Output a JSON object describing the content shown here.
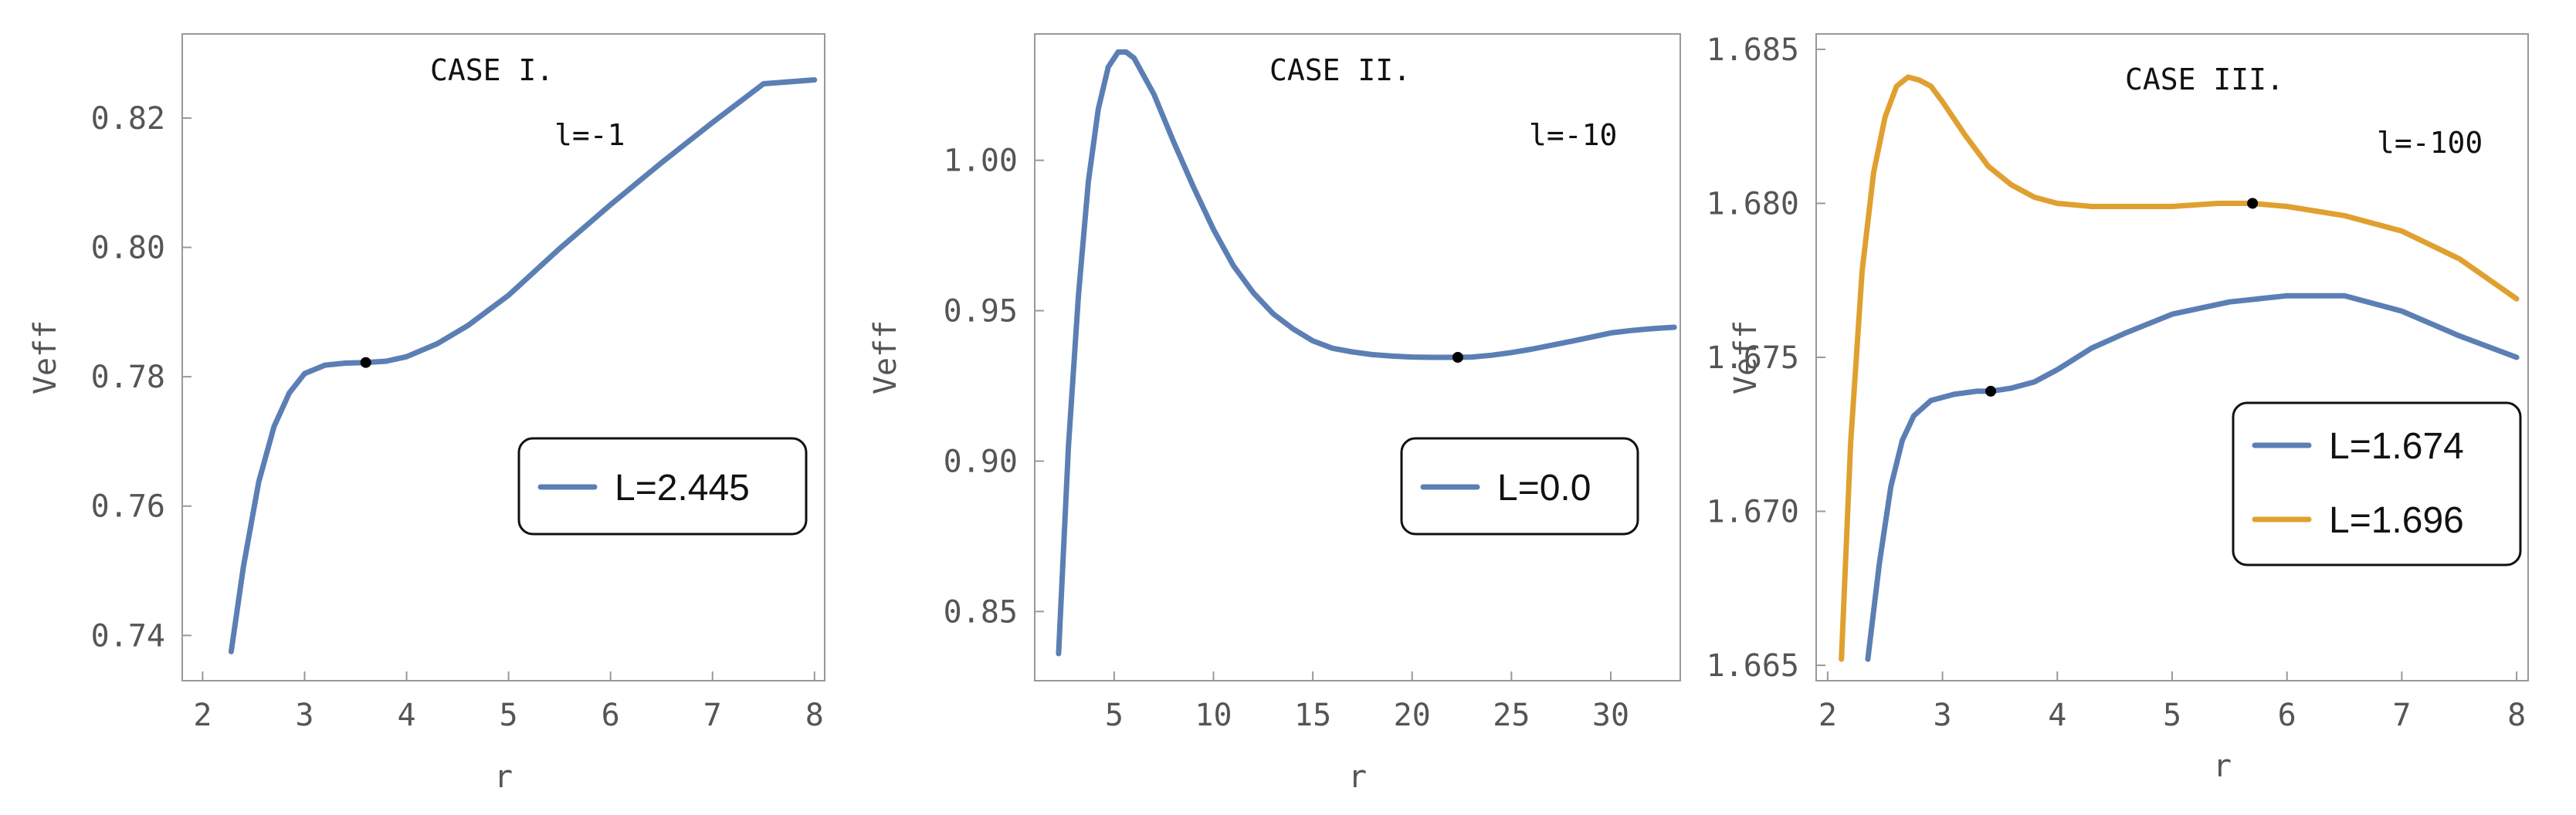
{
  "chart_data": [
    {
      "type": "line",
      "xlabel": "r",
      "ylabel": "Veff",
      "xlim": [
        1.8,
        8.1
      ],
      "ylim": [
        0.733,
        0.833
      ],
      "xticks": [
        2,
        3,
        4,
        5,
        6,
        7,
        8
      ],
      "xtick_labels": [
        "2",
        "3",
        "4",
        "5",
        "6",
        "7",
        "8"
      ],
      "yticks": [
        0.74,
        0.76,
        0.78,
        0.8,
        0.82
      ],
      "ytick_labels": [
        "0.74",
        "0.76",
        "0.78",
        "0.80",
        "0.82"
      ],
      "annotations": [
        "CASE I.",
        "l=-1"
      ],
      "legend_position": "lower-right",
      "grid": false,
      "series": [
        {
          "name": "L=2.445",
          "color": "#5b7fb4",
          "x": [
            2.28,
            2.4,
            2.55,
            2.7,
            2.85,
            3.0,
            3.2,
            3.4,
            3.6,
            3.8,
            4.0,
            4.3,
            4.6,
            5.0,
            5.5,
            6.0,
            6.5,
            7.0,
            7.5,
            8.0
          ],
          "y": [
            0.7375,
            0.7506,
            0.7637,
            0.7723,
            0.7775,
            0.7805,
            0.7818,
            0.7821,
            0.7822,
            0.7824,
            0.7831,
            0.7851,
            0.7879,
            0.7926,
            0.7998,
            0.8066,
            0.8131,
            0.8193,
            0.8253,
            0.8259
          ]
        }
      ],
      "marked_points": [
        {
          "x": 3.6,
          "y": 0.7822
        }
      ]
    },
    {
      "type": "line",
      "xlabel": "r",
      "ylabel": "Veff",
      "xlim": [
        1.0,
        33.5
      ],
      "ylim": [
        0.827,
        1.042
      ],
      "xticks": [
        5,
        10,
        15,
        20,
        25,
        30
      ],
      "xtick_labels": [
        "5",
        "10",
        "15",
        "20",
        "25",
        "30"
      ],
      "yticks": [
        0.85,
        0.9,
        0.95,
        1.0
      ],
      "ytick_labels": [
        "0.85",
        "0.90",
        "0.95",
        "1.00"
      ],
      "annotations": [
        "CASE II.",
        "l=-10"
      ],
      "legend_position": "lower-right",
      "grid": false,
      "series": [
        {
          "name": "L=0.0",
          "color": "#5b7fb4",
          "x": [
            2.2,
            2.7,
            3.2,
            3.7,
            4.2,
            4.7,
            5.2,
            5.6,
            6.0,
            7.0,
            8.0,
            9.0,
            10.0,
            11.0,
            12.0,
            13.0,
            14.0,
            15.0,
            16.0,
            17.0,
            18.0,
            19.0,
            20.0,
            21.0,
            22.3,
            23.0,
            24.0,
            25.0,
            26.0,
            27.0,
            28.0,
            29.0,
            30.0,
            31.0,
            32.0,
            33.2
          ],
          "y": [
            0.836,
            0.905,
            0.955,
            0.993,
            1.017,
            1.031,
            1.036,
            1.036,
            1.034,
            1.022,
            1.006,
            0.991,
            0.977,
            0.965,
            0.956,
            0.949,
            0.944,
            0.94,
            0.9375,
            0.9363,
            0.9354,
            0.9349,
            0.9346,
            0.9345,
            0.9345,
            0.9346,
            0.9352,
            0.9361,
            0.9372,
            0.9385,
            0.9398,
            0.9412,
            0.9426,
            0.9434,
            0.944,
            0.9445
          ]
        }
      ],
      "marked_points": [
        {
          "x": 22.3,
          "y": 0.9345
        }
      ]
    },
    {
      "type": "line",
      "xlabel": "r",
      "ylabel": "Veff",
      "xlim": [
        1.9,
        8.1
      ],
      "ylim": [
        1.6645,
        1.6855
      ],
      "xticks": [
        2,
        3,
        4,
        5,
        6,
        7,
        8
      ],
      "xtick_labels": [
        "2",
        "3",
        "4",
        "5",
        "6",
        "7",
        "8"
      ],
      "yticks": [
        1.665,
        1.67,
        1.675,
        1.68,
        1.685
      ],
      "ytick_labels": [
        "1.665",
        "1.670",
        "1.675",
        "1.680",
        "1.685"
      ],
      "annotations": [
        "CASE III.",
        "l=-100"
      ],
      "legend_position": "lower-right",
      "grid": false,
      "series": [
        {
          "name": "L=1.674",
          "color": "#5b7fb4",
          "x": [
            2.35,
            2.45,
            2.55,
            2.65,
            2.75,
            2.9,
            3.1,
            3.3,
            3.42,
            3.6,
            3.8,
            4.0,
            4.3,
            4.6,
            5.0,
            5.5,
            6.0,
            6.5,
            7.0,
            7.5,
            8.0
          ],
          "y": [
            1.6652,
            1.6683,
            1.6708,
            1.6723,
            1.6731,
            1.6736,
            1.6738,
            1.6739,
            1.6739,
            1.674,
            1.6742,
            1.6746,
            1.6753,
            1.6758,
            1.6764,
            1.6768,
            1.677,
            1.677,
            1.6765,
            1.6757,
            1.675
          ]
        },
        {
          "name": "L=1.696",
          "color": "#e0a030",
          "x": [
            2.12,
            2.2,
            2.3,
            2.4,
            2.5,
            2.6,
            2.7,
            2.8,
            2.9,
            3.0,
            3.2,
            3.4,
            3.6,
            3.8,
            4.0,
            4.3,
            4.6,
            5.0,
            5.4,
            5.7,
            6.0,
            6.5,
            7.0,
            7.5,
            8.0
          ],
          "y": [
            1.6652,
            1.6722,
            1.6778,
            1.681,
            1.6828,
            1.6838,
            1.6841,
            1.684,
            1.6838,
            1.6833,
            1.6822,
            1.6812,
            1.6806,
            1.6802,
            1.68,
            1.6799,
            1.6799,
            1.6799,
            1.68,
            1.68,
            1.6799,
            1.6796,
            1.6791,
            1.6782,
            1.6769
          ]
        }
      ],
      "marked_points": [
        {
          "x": 3.42,
          "y": 1.6739
        },
        {
          "x": 5.7,
          "y": 1.68
        }
      ]
    }
  ]
}
